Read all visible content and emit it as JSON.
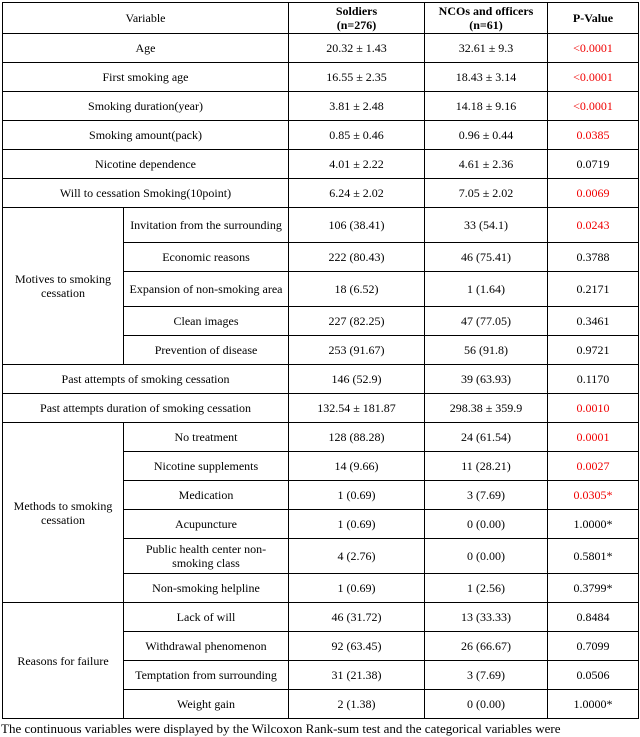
{
  "colors": {
    "significant_p": "#f00000",
    "border": "#000000",
    "text": "#000000",
    "background": "#ffffff"
  },
  "table": {
    "header": {
      "variable": "Variable",
      "soldiers_line1": "Soldiers",
      "soldiers_line2": "(n=276)",
      "ncos_line1": "NCOs and officers",
      "ncos_line2": "(n=61)",
      "pvalue": "P-Value"
    },
    "groups": [
      {
        "label": "Motives to smoking cessation"
      },
      {
        "label": "Methods to smoking cessation"
      },
      {
        "label": "Reasons for failure"
      }
    ],
    "rows": [
      {
        "label": "Age",
        "soldiers": "20.32 ± 1.43",
        "ncos": "32.61 ± 9.3",
        "p": "<0.0001",
        "significant": true
      },
      {
        "label": "First smoking age",
        "soldiers": "16.55 ± 2.35",
        "ncos": "18.43 ± 3.14",
        "p": "<0.0001",
        "significant": true
      },
      {
        "label": "Smoking duration(year)",
        "soldiers": "3.81 ± 2.48",
        "ncos": "14.18 ± 9.16",
        "p": "<0.0001",
        "significant": true
      },
      {
        "label": "Smoking amount(pack)",
        "soldiers": "0.85 ± 0.46",
        "ncos": "0.96 ± 0.44",
        "p": "0.0385",
        "significant": true
      },
      {
        "label": "Nicotine dependence",
        "soldiers": "4.01 ± 2.22",
        "ncos": "4.61 ± 2.36",
        "p": "0.0719",
        "significant": false
      },
      {
        "label": "Will to cessation Smoking(10point)",
        "soldiers": "6.24 ± 2.02",
        "ncos": "7.05 ± 2.02",
        "p": "0.0069",
        "significant": true
      },
      {
        "label": "Invitation from the surrounding",
        "soldiers": "106 (38.41)",
        "ncos": "33 (54.1)",
        "p": "0.0243",
        "significant": true
      },
      {
        "label": "Economic reasons",
        "soldiers": "222 (80.43)",
        "ncos": "46 (75.41)",
        "p": "0.3788",
        "significant": false
      },
      {
        "label": "Expansion of non-smoking area",
        "soldiers": "18 (6.52)",
        "ncos": "1 (1.64)",
        "p": "0.2171",
        "significant": false
      },
      {
        "label": "Clean images",
        "soldiers": "227 (82.25)",
        "ncos": "47 (77.05)",
        "p": "0.3461",
        "significant": false
      },
      {
        "label": "Prevention of disease",
        "soldiers": "253 (91.67)",
        "ncos": "56 (91.8)",
        "p": "0.9721",
        "significant": false
      },
      {
        "label": "Past attempts of smoking cessation",
        "soldiers": "146 (52.9)",
        "ncos": "39 (63.93)",
        "p": "0.1170",
        "significant": false
      },
      {
        "label": "Past attempts duration of smoking cessation",
        "soldiers": "132.54 ± 181.87",
        "ncos": "298.38 ± 359.9",
        "p": "0.0010",
        "significant": true
      },
      {
        "label": "No treatment",
        "soldiers": "128 (88.28)",
        "ncos": "24 (61.54)",
        "p": "0.0001",
        "significant": true
      },
      {
        "label": "Nicotine supplements",
        "soldiers": "14 (9.66)",
        "ncos": "11 (28.21)",
        "p": "0.0027",
        "significant": true
      },
      {
        "label": "Medication",
        "soldiers": "1 (0.69)",
        "ncos": "3 (7.69)",
        "p": "0.0305*",
        "significant": true
      },
      {
        "label": "Acupuncture",
        "soldiers": "1 (0.69)",
        "ncos": "0 (0.00)",
        "p": "1.0000*",
        "significant": false
      },
      {
        "label": "Public health center non-smoking class",
        "soldiers": "4 (2.76)",
        "ncos": "0 (0.00)",
        "p": "0.5801*",
        "significant": false
      },
      {
        "label": "Non-smoking helpline",
        "soldiers": "1 (0.69)",
        "ncos": "1 (2.56)",
        "p": "0.3799*",
        "significant": false
      },
      {
        "label": "Lack of will",
        "soldiers": "46 (31.72)",
        "ncos": "13 (33.33)",
        "p": "0.8484",
        "significant": false
      },
      {
        "label": "Withdrawal phenomenon",
        "soldiers": "92 (63.45)",
        "ncos": "26 (66.67)",
        "p": "0.7099",
        "significant": false
      },
      {
        "label": "Temptation from surrounding",
        "soldiers": "31 (21.38)",
        "ncos": "3 (7.69)",
        "p": "0.0506",
        "significant": false
      },
      {
        "label": "Weight gain",
        "soldiers": "2 (1.38)",
        "ncos": "0 (0.00)",
        "p": "1.0000*",
        "significant": false
      }
    ]
  },
  "footnote": "The continuous variables were displayed by the Wilcoxon Rank-sum test and the categorical variables were"
}
